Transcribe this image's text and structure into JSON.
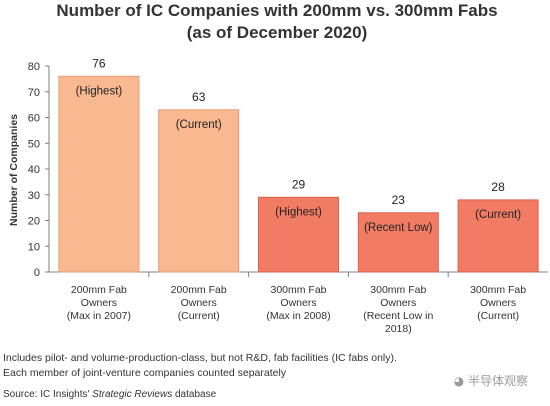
{
  "chart_data": {
    "type": "bar",
    "title": "Number of IC Companies with 200mm vs. 300mm Fabs",
    "subtitle": "(as of December 2020)",
    "ylabel": "Number of Companies",
    "xlabel": "",
    "ylim": [
      0,
      80
    ],
    "yticks": [
      0,
      10,
      20,
      30,
      40,
      50,
      60,
      70,
      80
    ],
    "grid": false,
    "categories": [
      [
        "200mm Fab",
        "Owners",
        "(Max in 2007)"
      ],
      [
        "200mm Fab",
        "Owners",
        "(Current)"
      ],
      [
        "300mm Fab",
        "Owners",
        "(Max in 2008)"
      ],
      [
        "300mm Fab",
        "Owners",
        "(Recent Low in",
        "2018)"
      ],
      [
        "300mm Fab",
        "Owners",
        "(Current)"
      ]
    ],
    "values": [
      76,
      63,
      29,
      23,
      28
    ],
    "annotations": [
      "(Highest)",
      "(Current)",
      "(Highest)",
      "(Recent Low)",
      "(Current)"
    ],
    "colors": [
      "#f9b990",
      "#f9b990",
      "#f27b63",
      "#f27b63",
      "#f27b63"
    ],
    "bar_edge_colors": [
      "#e09d74",
      "#e09d74",
      "#d9624e",
      "#d9624e",
      "#d9624e"
    ]
  },
  "footnotes": {
    "line1": "Includes pilot- and volume-production-class, but not R&D, fab facilities (IC fabs only).",
    "line2": "Each member of joint-venture companies counted separately",
    "source_prefix": "Source:  IC Insights' ",
    "source_italic": "Strategic Reviews",
    "source_suffix": " database"
  },
  "watermark": "半导体观察"
}
